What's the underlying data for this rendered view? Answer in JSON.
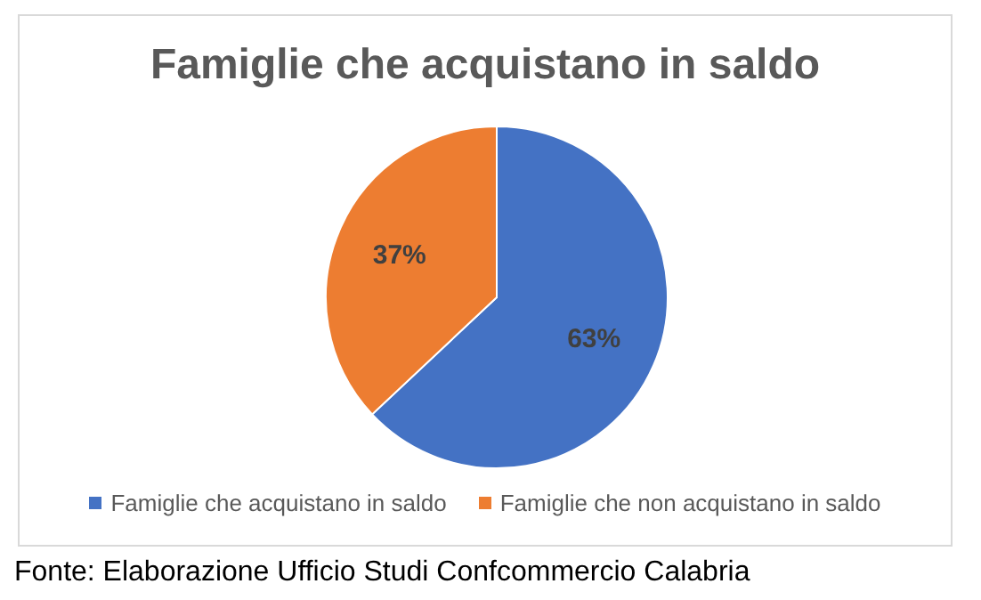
{
  "chart_data": {
    "type": "pie",
    "title": "Famiglie che acquistano in saldo",
    "categories": [
      "Famiglie che acquistano in saldo",
      "Famiglie che non acquistano in saldo"
    ],
    "values": [
      63,
      37
    ],
    "colors": [
      "#4472c4",
      "#ed7d31"
    ],
    "value_labels": [
      "63%",
      "37%"
    ],
    "legend": "bottom",
    "annotations": [
      "Fonte: Elaborazione Ufficio Studi Confcommercio Calabria"
    ]
  }
}
